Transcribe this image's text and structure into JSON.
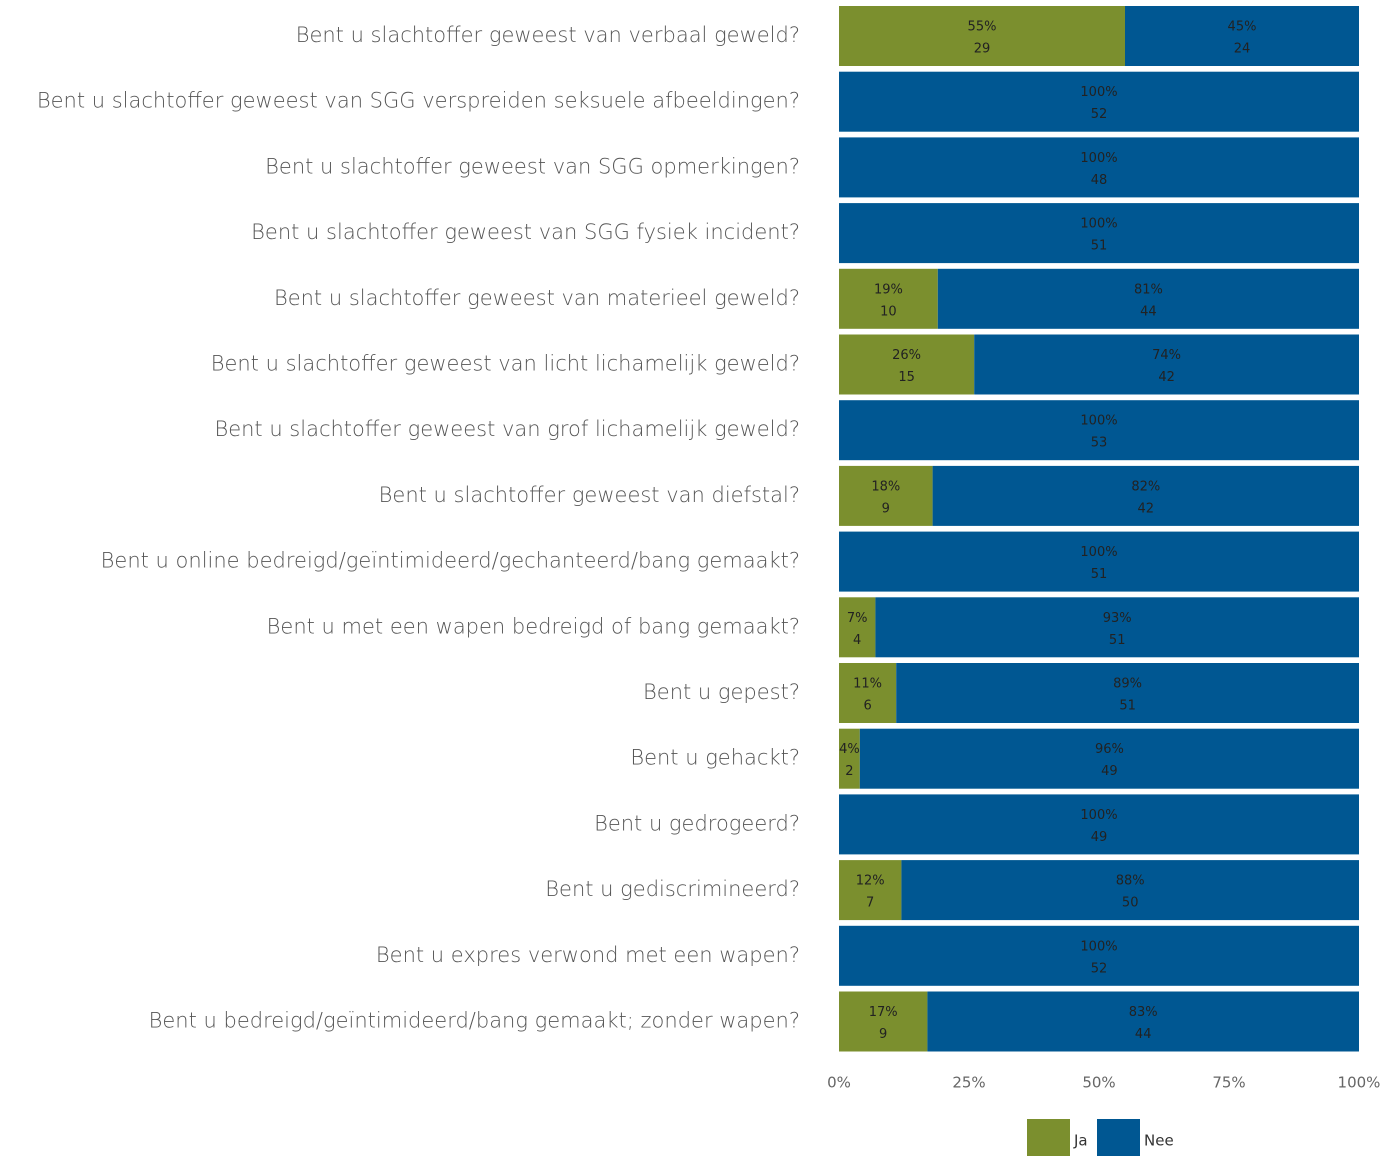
{
  "chart_data": {
    "type": "bar",
    "orientation": "horizontal",
    "stacked": true,
    "percent": true,
    "title": "",
    "xlabel": "",
    "ylabel": "",
    "xlim": [
      0,
      100
    ],
    "x_ticks": [
      "0%",
      "25%",
      "50%",
      "75%",
      "100%"
    ],
    "grid": false,
    "legend_position": "bottom",
    "categories": [
      "Bent u slachtoffer geweest van verbaal geweld?",
      "Bent u slachtoffer geweest van SGG verspreiden seksuele afbeeldingen?",
      "Bent u slachtoffer geweest van SGG opmerkingen?",
      "Bent u slachtoffer geweest van SGG fysiek incident?",
      "Bent u slachtoffer geweest van materieel geweld?",
      "Bent u slachtoffer geweest van licht lichamelijk geweld?",
      "Bent u slachtoffer geweest van grof lichamelijk geweld?",
      "Bent u slachtoffer geweest van diefstal?",
      "Bent u online bedreigd/geïntimideerd/gechanteerd/bang gemaakt?",
      "Bent u met een wapen bedreigd of bang gemaakt?",
      "Bent u gepest?",
      "Bent u gehackt?",
      "Bent u gedrogeerd?",
      "Bent u gediscrimineerd?",
      "Bent u expres verwond met een wapen?",
      "Bent u bedreigd/geïntimideerd/bang gemaakt; zonder wapen?"
    ],
    "series": [
      {
        "name": "Ja",
        "color": "#7b8f2e",
        "values": [
          55,
          0,
          0,
          0,
          19,
          26,
          0,
          18,
          0,
          7,
          11,
          4,
          0,
          12,
          0,
          17
        ],
        "counts": [
          29,
          0,
          0,
          0,
          10,
          15,
          0,
          9,
          0,
          4,
          6,
          2,
          0,
          7,
          0,
          9
        ]
      },
      {
        "name": "Nee",
        "color": "#005792",
        "values": [
          45,
          100,
          100,
          100,
          81,
          74,
          100,
          82,
          100,
          93,
          89,
          96,
          100,
          88,
          100,
          83
        ],
        "counts": [
          24,
          52,
          48,
          51,
          44,
          42,
          53,
          42,
          51,
          51,
          51,
          49,
          49,
          50,
          52,
          44
        ]
      }
    ]
  }
}
